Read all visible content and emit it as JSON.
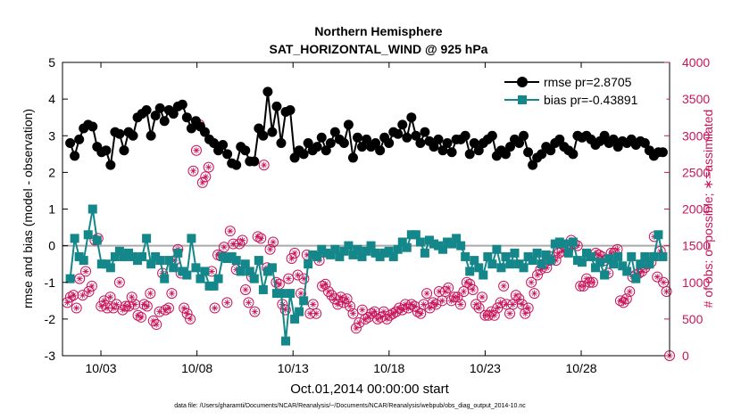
{
  "chart_data": {
    "type": "line",
    "title": "Northern Hemisphere",
    "subtitle": "SAT_HORIZONTAL_WIND @ 925 hPa",
    "xlabel": "Oct.01,2014 00:00:00 start",
    "ylabel": "rmse and bias (model - observation)",
    "y2label": "# of obs: o=possible; ∗=assimilated",
    "footer": "data file: /Users/gharamti/Documents/NCAR/Reanalysis/~/Documents/NCAR/Reanalysis/webpub/obs_diag_output_2014-10.nc",
    "xlim": [
      1,
      32.6
    ],
    "ylim": [
      -3,
      5
    ],
    "y2lim": [
      0,
      4000
    ],
    "x_ticks": [
      3,
      8,
      13,
      18,
      23,
      28
    ],
    "x_tick_labels": [
      "10/03",
      "10/08",
      "10/13",
      "10/18",
      "10/23",
      "10/28"
    ],
    "y_ticks": [
      -3,
      -2,
      -1,
      0,
      1,
      2,
      3,
      4,
      5
    ],
    "y2_ticks": [
      0,
      500,
      1000,
      1500,
      2000,
      2500,
      3000,
      3500,
      4000
    ],
    "legend_position": "top-right",
    "colors": {
      "rmse": "#000000",
      "bias": "#14878a",
      "obs": "#c8145a",
      "zero": "#aaaaaa"
    },
    "series": [
      {
        "name": "rmse pr=2.8705",
        "axis": "left",
        "values": [
          2.8,
          2.45,
          2.9,
          3.2,
          3.3,
          3.25,
          2.7,
          2.55,
          2.6,
          2.2,
          3.1,
          3.05,
          2.6,
          3.1,
          3.0,
          3.5,
          3.6,
          3.7,
          3.0,
          3.55,
          3.75,
          3.4,
          3.7,
          3.6,
          3.8,
          3.85,
          3.5,
          3.2,
          3.4,
          3.25,
          3.1,
          2.9,
          2.8,
          2.6,
          2.75,
          2.5,
          2.25,
          2.2,
          2.7,
          2.6,
          2.3,
          2.3,
          3.2,
          3.0,
          4.2,
          3.1,
          3.8,
          2.8,
          3.65,
          3.7,
          2.4,
          2.6,
          2.5,
          2.8,
          2.6,
          2.7,
          2.95,
          2.6,
          2.8,
          3.1,
          2.9,
          2.8,
          3.3,
          2.4,
          2.95,
          2.7,
          2.9,
          2.7,
          2.8,
          2.6,
          2.95,
          2.8,
          3.1,
          3.05,
          3.3,
          2.95,
          3.5,
          3.0,
          2.8,
          3.1,
          2.85,
          2.7,
          2.9,
          2.6,
          2.8,
          2.55,
          2.9,
          2.9,
          3.0,
          2.5,
          2.8,
          2.6,
          2.8,
          2.9,
          3.0,
          2.45,
          2.6,
          2.5,
          2.7,
          2.9,
          2.8,
          3.0,
          2.55,
          2.2,
          2.4,
          2.5,
          2.7,
          2.6,
          2.8,
          2.9,
          2.7,
          2.6,
          2.5,
          3.0,
          2.95,
          3.0,
          2.9,
          2.75,
          2.85,
          3.0,
          2.8,
          2.9,
          2.7,
          2.85,
          2.8,
          2.9,
          2.75,
          2.85,
          2.8,
          2.6,
          2.45,
          2.55,
          2.55
        ]
      },
      {
        "name": "bias pr=-0.43891",
        "axis": "left",
        "values": [
          -0.9,
          0.2,
          -0.3,
          -0.4,
          0.3,
          1.0,
          0.15,
          -0.5,
          -0.5,
          -0.6,
          -0.3,
          -0.15,
          -0.3,
          -0.2,
          -0.3,
          -0.4,
          -0.3,
          0.2,
          -0.5,
          -0.3,
          -0.4,
          -0.9,
          -0.4,
          -0.6,
          -0.2,
          -0.7,
          -0.8,
          0.2,
          -0.6,
          -0.9,
          -0.7,
          -1.1,
          -1.1,
          -0.9,
          -0.3,
          -0.35,
          -0.3,
          -0.4,
          -0.7,
          -0.5,
          -0.7,
          -0.9,
          -0.4,
          -1.2,
          -0.7,
          -0.6,
          -1.3,
          -1.3,
          -2.6,
          -1.3,
          -2.0,
          -1.8,
          -1.5,
          -0.5,
          -0.25,
          -0.3,
          -0.1,
          -0.2,
          -0.25,
          -0.1,
          -0.3,
          -0.15,
          0.0,
          -0.25,
          -0.1,
          -0.3,
          -0.15,
          0.0,
          -0.2,
          -0.3,
          -0.2,
          -0.15,
          -0.3,
          -0.1,
          0.1,
          -0.05,
          0.3,
          0.3,
          0.1,
          -0.2,
          0.15,
          0.05,
          0.0,
          -0.1,
          0.1,
          0.05,
          0.2,
          0.0,
          -0.3,
          -0.7,
          -0.4,
          -0.6,
          -0.8,
          -0.3,
          -0.5,
          -0.1,
          -0.6,
          -0.3,
          -0.5,
          -0.2,
          -0.5,
          -0.6,
          -0.3,
          -0.4,
          -0.2,
          -0.5,
          -0.25,
          -0.4,
          0.05,
          0.1,
          0.05,
          -0.2,
          0.1,
          -0.4,
          -0.45,
          -0.2,
          -0.3,
          -0.6,
          -0.45,
          -0.8,
          -0.35,
          -0.5,
          -0.3,
          -0.55,
          -0.7,
          -0.3,
          -0.9,
          -0.5,
          -0.3,
          -0.5,
          -0.3,
          0.3,
          -0.3
        ]
      },
      {
        "name": "obs possible/assimilated",
        "axis": "right",
        "values": [
          725,
          800,
          825,
          650,
          1050,
          825,
          1150,
          875,
          950,
          1575,
          1600,
          675,
          750,
          650,
          800,
          650,
          700,
          1000,
          625,
          675,
          675,
          800,
          700,
          550,
          525,
          700,
          675,
          850,
          475,
          425,
          600,
          1125,
          625,
          650,
          850,
          1300,
          1450,
          1125,
          650,
          575,
          500,
          2520,
          2800,
          3150,
          2360,
          2440,
          2570,
          1150,
          650,
          1375,
          1360,
          1480,
          725,
          1700,
          1525,
          1175,
          1525,
          1575,
          900,
          725,
          1075,
          600,
          1625,
          1600,
          2600,
          1200,
          1450,
          1550,
          1000,
          975,
          700,
          625,
          1050,
          1325,
          1400,
          1100,
          850,
          1050,
          1375,
          575,
          700,
          575,
          1300,
          950,
          975,
          875,
          825,
          775,
          700,
          800,
          725,
          775,
          675,
          575,
          375,
          450,
          625,
          500,
          525,
          575,
          600,
          500,
          525,
          600,
          500,
          550,
          575,
          600,
          650,
          625,
          700,
          650,
          700,
          675,
          600,
          575,
          700,
          850,
          650,
          725,
          700,
          875,
          750,
          875,
          925,
          750,
          800,
          800,
          700,
          875,
          1000,
          975,
          900,
          700,
          650,
          800,
          550,
          550,
          600,
          550,
          650,
          725,
          950,
          700,
          575,
          700,
          825,
          775,
          700,
          575,
          650,
          1000,
          850,
          1100,
          1175,
          1250,
          1200,
          1300,
          1350,
          1300,
          1400,
          1425,
          1500,
          1450,
          1575,
          1525,
          1500,
          950,
          950,
          1050,
          1000,
          1000,
          1400,
          1375,
          1350,
          1300,
          1125,
          1400,
          1400,
          1450,
          750,
          725,
          775,
          875,
          1075,
          1100,
          1125,
          1150,
          1200,
          1250,
          1275,
          1625,
          1075,
          1425,
          1000,
          875,
          0
        ]
      }
    ]
  }
}
